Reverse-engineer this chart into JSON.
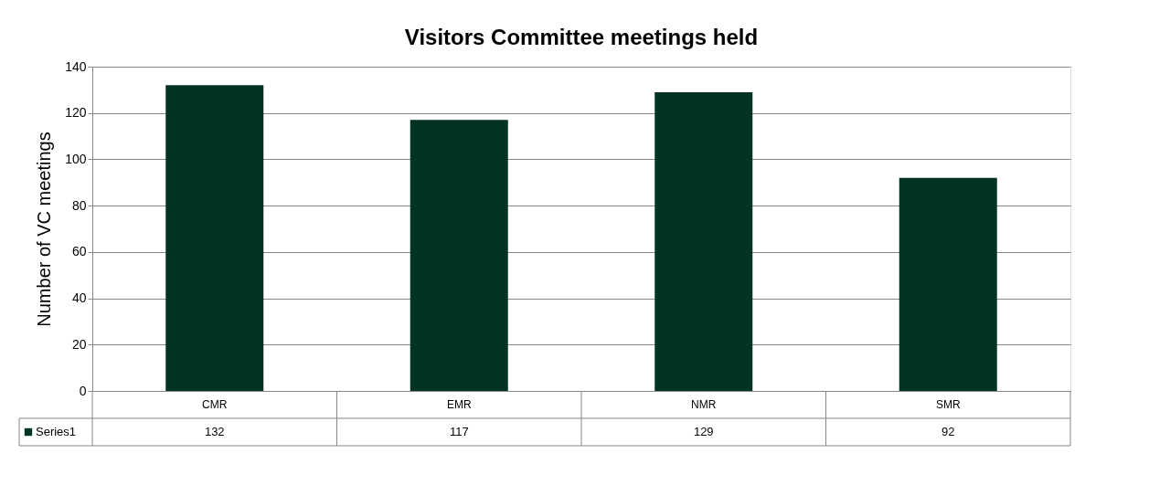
{
  "chart_data": {
    "type": "bar",
    "title": "Visitors Committee meetings held",
    "ylabel": "Number of VC meetings",
    "categories": [
      "CMR",
      "EMR",
      "NMR",
      "SMR"
    ],
    "series": [
      {
        "name": "Series1",
        "color": "#033324",
        "values": [
          132,
          117,
          129,
          92
        ]
      }
    ],
    "ylim": [
      0,
      140
    ],
    "yticks": [
      0,
      20,
      40,
      60,
      80,
      100,
      120,
      140
    ],
    "grid": "y",
    "data_labels": true,
    "legend": "bottom"
  }
}
